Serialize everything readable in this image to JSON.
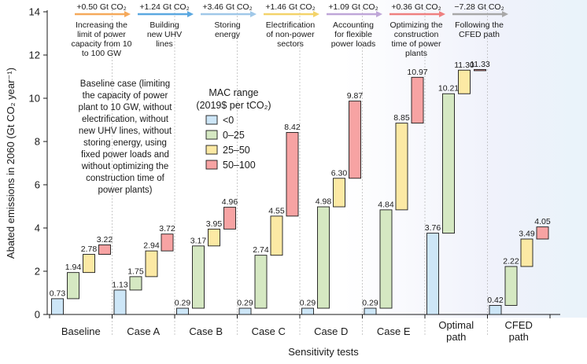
{
  "chart_data": {
    "type": "bar",
    "subtype": "waterfall",
    "ylabel": "Abated emissions in 2060 (Gt CO₂ year⁻¹)",
    "xlabel": "Sensitivity tests",
    "ylim": [
      0,
      14
    ],
    "yticks": [
      0,
      2,
      4,
      6,
      8,
      10,
      12,
      14
    ],
    "grid": false,
    "categories": [
      {
        "label": [
          "Baseline"
        ]
      },
      {
        "label": [
          "Case A"
        ]
      },
      {
        "label": [
          "Case B"
        ]
      },
      {
        "label": [
          "Case C"
        ]
      },
      {
        "label": [
          "Case D"
        ]
      },
      {
        "label": [
          "Case E"
        ]
      },
      {
        "label": [
          "Optimal",
          "path"
        ]
      },
      {
        "label": [
          "CFED",
          "path"
        ]
      }
    ],
    "legend": {
      "title": [
        "MAC range",
        "(2019$ per tCO₂)"
      ],
      "placement": "upper-left-center",
      "items": [
        {
          "label": "<0",
          "color": "#cde6f7"
        },
        {
          "label": "0–25",
          "color": "#d5e8c2"
        },
        {
          "label": "25–50",
          "color": "#fce9a4"
        },
        {
          "label": "50–100",
          "color": "#f7a3a3"
        }
      ]
    },
    "annotation": {
      "lines": [
        "Baseline case (limiting",
        "the capacity of power",
        "plant to 10 GW, without",
        "electrification, without",
        "new UHV lines, without",
        "storing energy, using",
        "fixed power loads and",
        "without optimizing the",
        "construction time of",
        "power plants)"
      ]
    },
    "arrows": [
      {
        "value": "+0.50 Gt CO₂",
        "desc": [
          "Increasing the",
          "limit of power",
          "capacity from 10",
          "to 100 GW"
        ],
        "color": "#f5a95b"
      },
      {
        "value": "+1.24 Gt CO₂",
        "desc": [
          "Building",
          "new UHV",
          "lines"
        ],
        "color": "#5ba8e0"
      },
      {
        "value": "+3.46 Gt CO₂",
        "desc": [
          "Storing",
          "energy"
        ],
        "color": "#a0c8e8"
      },
      {
        "value": "+1.46 Gt CO₂",
        "desc": [
          "Electrification",
          "of non-power",
          "sectors"
        ],
        "color": "#f3d36a"
      },
      {
        "value": "+1.09 Gt CO₂",
        "desc": [
          "Accounting",
          "for flexible",
          "power loads"
        ],
        "color": "#bfa6d8"
      },
      {
        "value": "+0.36 Gt CO₂",
        "desc": [
          "Optimizing the",
          "construction",
          "time of power",
          "plants"
        ],
        "color": "#ee8080"
      },
      {
        "value": "−7.28 Gt CO₂",
        "desc": [
          "Following the",
          "CFED path"
        ],
        "color": "#a8a8a8"
      }
    ],
    "bars": [
      {
        "group": 0,
        "range": "<0",
        "base": 0,
        "top": 0.73,
        "label": "0.73"
      },
      {
        "group": 0,
        "range": "0–25",
        "base": 0.73,
        "top": 1.94,
        "label": "1.94"
      },
      {
        "group": 0,
        "range": "25–50",
        "base": 1.94,
        "top": 2.78,
        "label": "2.78"
      },
      {
        "group": 0,
        "range": "50–100",
        "base": 2.78,
        "top": 3.22,
        "label": "3.22"
      },
      {
        "group": 1,
        "range": "<0",
        "base": 0,
        "top": 1.13,
        "label": "1.13"
      },
      {
        "group": 1,
        "range": "0–25",
        "base": 1.13,
        "top": 1.75,
        "label": "1.75"
      },
      {
        "group": 1,
        "range": "25–50",
        "base": 1.75,
        "top": 2.94,
        "label": "2.94"
      },
      {
        "group": 1,
        "range": "50–100",
        "base": 2.94,
        "top": 3.72,
        "label": "3.72"
      },
      {
        "group": 2,
        "range": "<0",
        "base": 0,
        "top": 0.29,
        "label": "0.29"
      },
      {
        "group": 2,
        "range": "0–25",
        "base": 0.29,
        "top": 3.17,
        "label": "3.17"
      },
      {
        "group": 2,
        "range": "25–50",
        "base": 3.17,
        "top": 3.95,
        "label": "3.95"
      },
      {
        "group": 2,
        "range": "50–100",
        "base": 3.95,
        "top": 4.96,
        "label": "4.96"
      },
      {
        "group": 3,
        "range": "<0",
        "base": 0,
        "top": 0.29,
        "label": "0.29"
      },
      {
        "group": 3,
        "range": "0–25",
        "base": 0.29,
        "top": 2.74,
        "label": "2.74"
      },
      {
        "group": 3,
        "range": "25–50",
        "base": 2.74,
        "top": 4.55,
        "label": "4.55"
      },
      {
        "group": 3,
        "range": "50–100",
        "base": 4.55,
        "top": 8.42,
        "label": "8.42"
      },
      {
        "group": 4,
        "range": "<0",
        "base": 0,
        "top": 0.29,
        "label": "0.29"
      },
      {
        "group": 4,
        "range": "0–25",
        "base": 0.29,
        "top": 4.98,
        "label": "4.98"
      },
      {
        "group": 4,
        "range": "25–50",
        "base": 4.98,
        "top": 6.3,
        "label": "6.30"
      },
      {
        "group": 4,
        "range": "50–100",
        "base": 6.3,
        "top": 9.87,
        "label": "9.87"
      },
      {
        "group": 5,
        "range": "<0",
        "base": 0,
        "top": 0.29,
        "label": "0.29"
      },
      {
        "group": 5,
        "range": "0–25",
        "base": 0.29,
        "top": 4.84,
        "label": "4.84"
      },
      {
        "group": 5,
        "range": "25–50",
        "base": 4.84,
        "top": 8.85,
        "label": "8.85"
      },
      {
        "group": 5,
        "range": "50–100",
        "base": 8.85,
        "top": 10.97,
        "label": "10.97"
      },
      {
        "group": 6,
        "range": "<0",
        "base": 0,
        "top": 3.76,
        "label": "3.76"
      },
      {
        "group": 6,
        "range": "0–25",
        "base": 3.76,
        "top": 10.21,
        "label": "10.21"
      },
      {
        "group": 6,
        "range": "25–50",
        "base": 10.21,
        "top": 11.3,
        "label": "11.30"
      },
      {
        "group": 6,
        "range": "50–100",
        "base": 11.3,
        "top": 11.33,
        "label": "11.33"
      },
      {
        "group": 7,
        "range": "<0",
        "base": 0,
        "top": 0.42,
        "label": "0.42"
      },
      {
        "group": 7,
        "range": "0–25",
        "base": 0.42,
        "top": 2.22,
        "label": "2.22"
      },
      {
        "group": 7,
        "range": "25–50",
        "base": 2.22,
        "top": 3.49,
        "label": "3.49"
      },
      {
        "group": 7,
        "range": "50–100",
        "base": 3.49,
        "top": 4.05,
        "label": "4.05"
      }
    ]
  }
}
